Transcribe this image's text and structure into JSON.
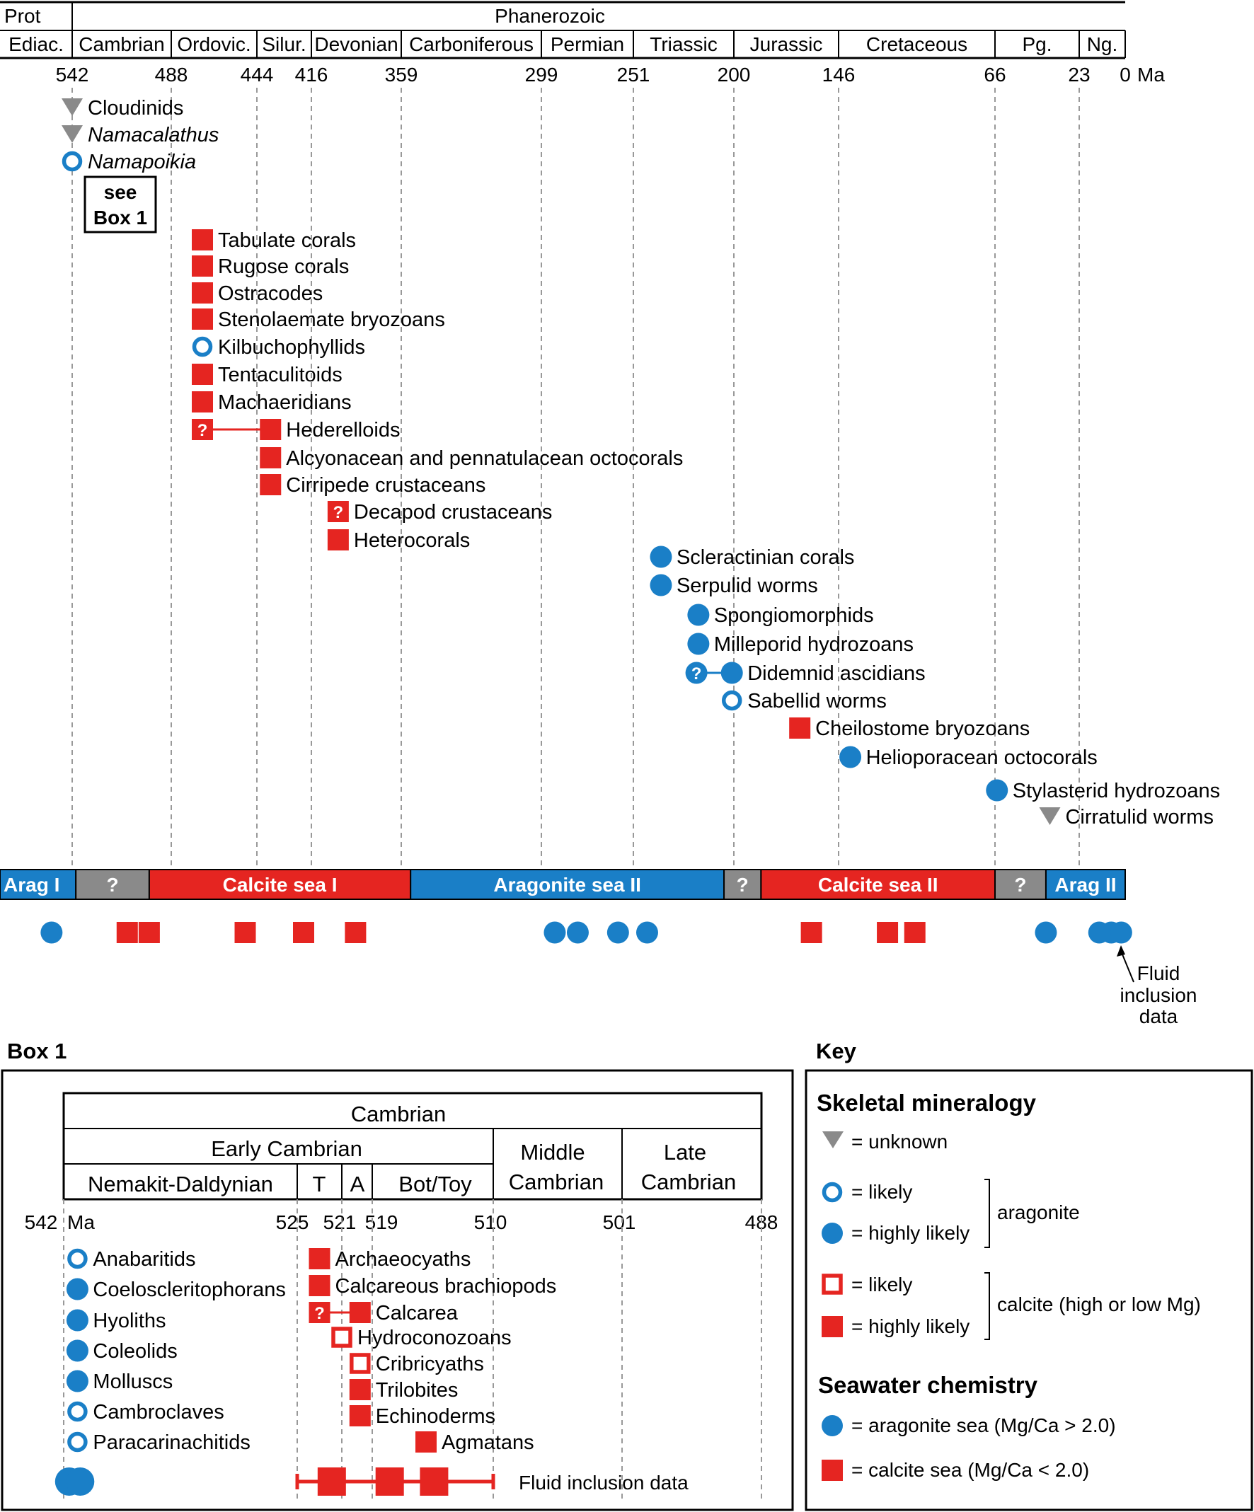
{
  "header": {
    "eon_left": "Prot",
    "eon_right": "Phanerozoic",
    "periods": [
      "Ediac.",
      "Cambrian",
      "Ordovic.",
      "Silur.",
      "Devonian",
      "Carboniferous",
      "Permian",
      "Triassic",
      "Jurassic",
      "Cretaceous",
      "Pg.",
      "Ng."
    ],
    "ages": [
      "542",
      "488",
      "444",
      "416",
      "359",
      "299",
      "251",
      "200",
      "146",
      "66",
      "23",
      "0"
    ],
    "unit": "Ma"
  },
  "first_appearances": [
    {
      "name": "Cloudinids",
      "ma": 542,
      "mineral": "unknown",
      "italic": false
    },
    {
      "name": "Namacalathus",
      "ma": 542,
      "mineral": "unknown",
      "italic": true
    },
    {
      "name": "Namapoikia",
      "ma": 542,
      "mineral": "aragonite-likely",
      "italic": true
    },
    {
      "name": "Tabulate corals",
      "ma": 472,
      "mineral": "calcite-highly-likely"
    },
    {
      "name": "Rugose corals",
      "ma": 472,
      "mineral": "calcite-highly-likely"
    },
    {
      "name": "Ostracodes",
      "ma": 472,
      "mineral": "calcite-highly-likely"
    },
    {
      "name": "Stenolaemate bryozoans",
      "ma": 472,
      "mineral": "calcite-highly-likely"
    },
    {
      "name": "Kilbuchophyllids",
      "ma": 472,
      "mineral": "aragonite-likely"
    },
    {
      "name": "Tentaculitoids",
      "ma": 472,
      "mineral": "calcite-highly-likely"
    },
    {
      "name": "Machaeridians",
      "ma": 472,
      "mineral": "calcite-highly-likely"
    },
    {
      "name": "Hederelloids",
      "ma": 437,
      "ma_uncertain": 472,
      "mineral": "calcite-highly-likely"
    },
    {
      "name": "Alcyonacean and pennatulacean octocorals",
      "ma": 437,
      "mineral": "calcite-highly-likely"
    },
    {
      "name": "Cirripede crustaceans",
      "ma": 437,
      "mineral": "calcite-highly-likely"
    },
    {
      "name": "Decapod crustaceans",
      "ma": 399,
      "mineral": "calcite-highly-likely",
      "question": true
    },
    {
      "name": "Heterocorals",
      "ma": 399,
      "mineral": "calcite-highly-likely"
    },
    {
      "name": "Scleractinian corals",
      "ma": 237,
      "mineral": "aragonite-highly-likely"
    },
    {
      "name": "Serpulid worms",
      "ma": 237,
      "mineral": "aragonite-highly-likely"
    },
    {
      "name": "Spongiomorphids",
      "ma": 218,
      "mineral": "aragonite-highly-likely"
    },
    {
      "name": "Milleporid hydrozoans",
      "ma": 218,
      "mineral": "aragonite-highly-likely"
    },
    {
      "name": "Didemnid ascidians",
      "ma": 201,
      "ma_uncertain": 219,
      "mineral": "aragonite-highly-likely"
    },
    {
      "name": "Sabellid worms",
      "ma": 201,
      "mineral": "aragonite-likely"
    },
    {
      "name": "Cheilostome bryozoans",
      "ma": 166,
      "mineral": "calcite-highly-likely"
    },
    {
      "name": "Helioporacean octocorals",
      "ma": 140,
      "mineral": "aragonite-highly-likely"
    },
    {
      "name": "Stylasterid hydrozoans",
      "ma": 65,
      "mineral": "aragonite-highly-likely"
    },
    {
      "name": "Cirratulid worms",
      "ma": 38,
      "mineral": "unknown"
    }
  ],
  "see_box": {
    "line1": "see",
    "line2": "Box 1"
  },
  "sea_bands": [
    {
      "label": "Arag I",
      "start": 570,
      "end": 540,
      "type": "aragonite"
    },
    {
      "label": "?",
      "start": 540,
      "end": 500,
      "type": "unknown"
    },
    {
      "label": "Calcite sea I",
      "start": 500,
      "end": 355,
      "type": "calcite"
    },
    {
      "label": "Aragonite sea II",
      "start": 355,
      "end": 205,
      "type": "aragonite"
    },
    {
      "label": "?",
      "start": 205,
      "end": 186,
      "type": "unknown"
    },
    {
      "label": "Calcite sea II",
      "start": 186,
      "end": 66,
      "type": "calcite"
    },
    {
      "label": "?",
      "start": 66,
      "end": 40,
      "type": "unknown"
    },
    {
      "label": "Arag II",
      "start": 40,
      "end": 0,
      "type": "aragonite"
    }
  ],
  "fluid_inclusions": [
    {
      "ma": 550,
      "type": "aragonite"
    },
    {
      "ma": 512,
      "type": "calcite"
    },
    {
      "ma": 500,
      "type": "calcite"
    },
    {
      "ma": 450,
      "type": "calcite"
    },
    {
      "ma": 420,
      "type": "calcite"
    },
    {
      "ma": 388,
      "type": "calcite"
    },
    {
      "ma": 292,
      "type": "aragonite"
    },
    {
      "ma": 280,
      "type": "aragonite"
    },
    {
      "ma": 259,
      "type": "aragonite"
    },
    {
      "ma": 244,
      "type": "aragonite"
    },
    {
      "ma": 160,
      "type": "calcite"
    },
    {
      "ma": 121,
      "type": "calcite"
    },
    {
      "ma": 107,
      "type": "calcite"
    },
    {
      "ma": 40,
      "type": "aragonite"
    },
    {
      "ma": 13,
      "type": "aragonite"
    },
    {
      "ma": 7,
      "type": "aragonite"
    },
    {
      "ma": 2,
      "type": "aragonite"
    }
  ],
  "fluid_label": [
    "Fluid",
    "inclusion",
    "data"
  ],
  "box1": {
    "title": "Box 1",
    "cambrian": "Cambrian",
    "early": "Early Cambrian",
    "middle": [
      "Middle",
      "Cambrian"
    ],
    "late": [
      "Late",
      "Cambrian"
    ],
    "stages": [
      "Nemakit-Daldynian",
      "T",
      "A",
      "Bot/Toy"
    ],
    "ages": [
      "542",
      "525",
      "521",
      "519",
      "510",
      "501",
      "488"
    ],
    "unit": "Ma",
    "taxa": [
      {
        "name": "Anabaritids",
        "ma": 541,
        "mineral": "aragonite-likely"
      },
      {
        "name": "Coeloscleritophorans",
        "ma": 541,
        "mineral": "aragonite-highly-likely"
      },
      {
        "name": "Hyoliths",
        "ma": 541,
        "mineral": "aragonite-highly-likely"
      },
      {
        "name": "Coleolids",
        "ma": 541,
        "mineral": "aragonite-highly-likely"
      },
      {
        "name": "Molluscs",
        "ma": 541,
        "mineral": "aragonite-highly-likely"
      },
      {
        "name": "Cambroclaves",
        "ma": 541,
        "mineral": "aragonite-likely"
      },
      {
        "name": "Paracarinachitids",
        "ma": 541,
        "mineral": "aragonite-likely"
      },
      {
        "name": "Archaeocyaths",
        "ma": 523,
        "mineral": "calcite-highly-likely"
      },
      {
        "name": "Calcareous brachiopods",
        "ma": 523,
        "mineral": "calcite-highly-likely"
      },
      {
        "name": "Calcarea",
        "ma": 519.8,
        "ma_uncertain": 523,
        "mineral": "calcite-highly-likely"
      },
      {
        "name": "Hydroconozoans",
        "ma": 521,
        "mineral": "calcite-likely"
      },
      {
        "name": "Cribricyaths",
        "ma": 519.8,
        "mineral": "calcite-likely"
      },
      {
        "name": "Trilobites",
        "ma": 519.8,
        "mineral": "calcite-highly-likely"
      },
      {
        "name": "Echinoderms",
        "ma": 519.8,
        "mineral": "calcite-highly-likely"
      },
      {
        "name": "Agmatans",
        "ma": 515,
        "mineral": "calcite-highly-likely"
      }
    ],
    "fluid_label": "Fluid inclusion data",
    "fluid_points": [
      {
        "ma": 541.6,
        "type": "aragonite"
      },
      {
        "ma": 540.8,
        "type": "aragonite"
      },
      {
        "ma": 521.9,
        "type": "calcite"
      },
      {
        "ma": 517.7,
        "type": "calcite"
      },
      {
        "ma": 514.4,
        "type": "calcite"
      }
    ],
    "fluid_range": [
      525,
      510
    ]
  },
  "key": {
    "title": "Key",
    "skeletal": "Skeletal mineralogy",
    "unknown": "= unknown",
    "likely": "= likely",
    "highly_likely": "= highly likely",
    "aragonite": "aragonite",
    "calcite": "calcite (high or low Mg)",
    "seawater": "Seawater chemistry",
    "arag_sea": "= aragonite sea (Mg/Ca > 2.0)",
    "calc_sea": "= calcite sea (Mg/Ca < 2.0)"
  },
  "colors": {
    "red": "#e52521",
    "blue": "#1a7fc7",
    "gray": "#8a8a8a",
    "dash": "#999999"
  }
}
